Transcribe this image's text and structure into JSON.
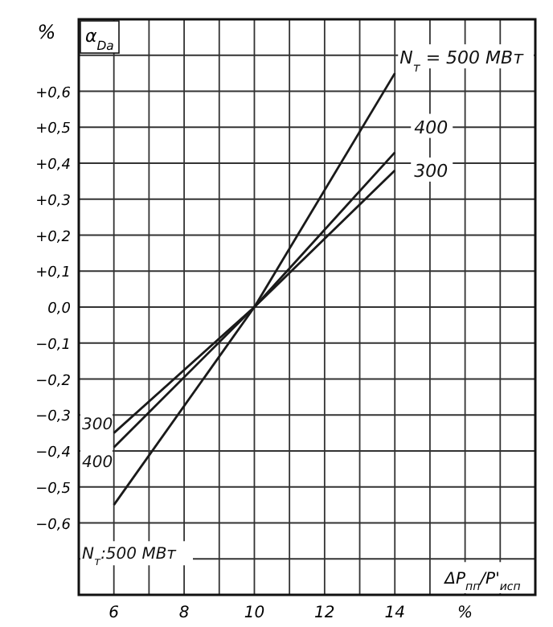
{
  "chart_data": {
    "type": "line",
    "title": "α$_{Dа}$",
    "ylabel": "%",
    "xlabel": "ΔP$_{пп}$/P'$_{исп}$",
    "xlim": [
      5,
      18
    ],
    "ylim": [
      -0.8,
      0.8
    ],
    "xticks": [
      6,
      {
        "value": 7,
        "label": null
      },
      8,
      {
        "value": 9,
        "label": null
      },
      10,
      {
        "value": 11,
        "label": null
      },
      12,
      {
        "value": 13,
        "label": null
      },
      14,
      {
        "value": 15,
        "label": null
      },
      {
        "value": 16,
        "label": "%"
      },
      {
        "value": 17,
        "label": null
      }
    ],
    "yticks": [
      {
        "value": -0.7,
        "label": null
      },
      {
        "value": -0.6,
        "label": "−0,6"
      },
      {
        "value": -0.5,
        "label": "−0,5"
      },
      {
        "value": -0.4,
        "label": "−0,4"
      },
      {
        "value": -0.3,
        "label": "−0,3"
      },
      {
        "value": -0.2,
        "label": "−0,2"
      },
      {
        "value": -0.1,
        "label": "−0,1"
      },
      {
        "value": 0,
        "label": "0,0"
      },
      {
        "value": 0.1,
        "label": "+0,1"
      },
      {
        "value": 0.2,
        "label": "+0,2"
      },
      {
        "value": 0.3,
        "label": "+0,3"
      },
      {
        "value": 0.4,
        "label": "+0,4"
      },
      {
        "value": 0.5,
        "label": "+0,5"
      },
      {
        "value": 0.6,
        "label": "+0,6"
      },
      {
        "value": 0.7,
        "label": null
      }
    ],
    "grid": true,
    "marker": "none",
    "line_style": "solid",
    "series": [
      {
        "name": "N$_{т}$ = 500 МВт",
        "color": "#1a1a1a",
        "x": [
          6,
          10,
          14
        ],
        "values": [
          -0.55,
          0,
          0.65
        ]
      },
      {
        "name": "400",
        "color": "#1a1a1a",
        "x": [
          6,
          10,
          14
        ],
        "values": [
          -0.39,
          0,
          0.43
        ]
      },
      {
        "name": "300",
        "color": "#1a1a1a",
        "x": [
          6,
          10,
          14
        ],
        "values": [
          -0.35,
          0,
          0.38
        ]
      }
    ],
    "annotations": [
      "300",
      "400",
      "N$_{т}$:500 МВт"
    ]
  }
}
